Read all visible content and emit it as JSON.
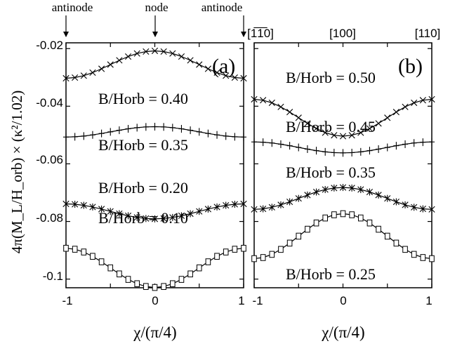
{
  "top_labels": {
    "antinode_left": "antinode",
    "node": "node",
    "antinode_right": "antinode"
  },
  "directions": {
    "left": "[1̅1̅0]",
    "center": "[100]",
    "right": "[110]"
  },
  "y_axis_label": "4π(M_L/H_orb) × (κ²/1.02)",
  "x_axis_label": "χ/(π/4)",
  "chart_data": [
    {
      "type": "line",
      "panel_label": "(a)",
      "xlim": [
        -1,
        1
      ],
      "ylim": [
        -0.103,
        -0.018
      ],
      "xticks": [
        "-1",
        "0",
        "1"
      ],
      "yticks": [
        "-0.02",
        "-0.04",
        "-0.06",
        "-0.08",
        "-0.1"
      ],
      "ytick_values": [
        -0.02,
        -0.04,
        -0.06,
        -0.08,
        -0.1
      ],
      "series": [
        {
          "name": "B/Horb = 0.40",
          "label_text": "B/Horb = 0.40",
          "marker": "x",
          "base": -0.0303,
          "amp": 0.0095,
          "sign": 1
        },
        {
          "name": "B/Horb = 0.35",
          "label_text": "B/Horb = 0.35",
          "marker": "+",
          "base": -0.0507,
          "amp": 0.0036,
          "sign": 1
        },
        {
          "name": "B/Horb = 0.20",
          "label_text": "B/Horb = 0.20",
          "marker": "asterisk",
          "base": -0.0739,
          "amp": 0.0052,
          "sign": -1
        },
        {
          "name": "B/Horb = 0.10",
          "label_text": "B/Horb = 0.10",
          "marker": "square",
          "base": -0.0893,
          "amp": 0.0136,
          "sign": -1
        }
      ]
    },
    {
      "type": "line",
      "panel_label": "(b)",
      "xlim": [
        -1,
        1
      ],
      "ylim": [
        -0.103,
        -0.018
      ],
      "xticks": [
        "-1",
        "0",
        "1"
      ],
      "series": [
        {
          "name": "B/Horb = 0.50",
          "label_text": "B/Horb = 0.50",
          "marker": "x",
          "base": -0.0376,
          "amp": 0.0128,
          "sign": -1
        },
        {
          "name": "B/Horb = 0.45",
          "label_text": "B/Horb = 0.45",
          "marker": "+",
          "base": -0.0524,
          "amp": 0.0038,
          "sign": -1
        },
        {
          "name": "B/Horb = 0.35",
          "label_text": "B/Horb = 0.35",
          "marker": "asterisk",
          "base": -0.0758,
          "amp": 0.0076,
          "sign": 1
        },
        {
          "name": "B/Horb = 0.25",
          "label_text": "B/Horb = 0.25",
          "marker": "square",
          "base": -0.0929,
          "amp": 0.0156,
          "sign": 1
        }
      ]
    }
  ]
}
